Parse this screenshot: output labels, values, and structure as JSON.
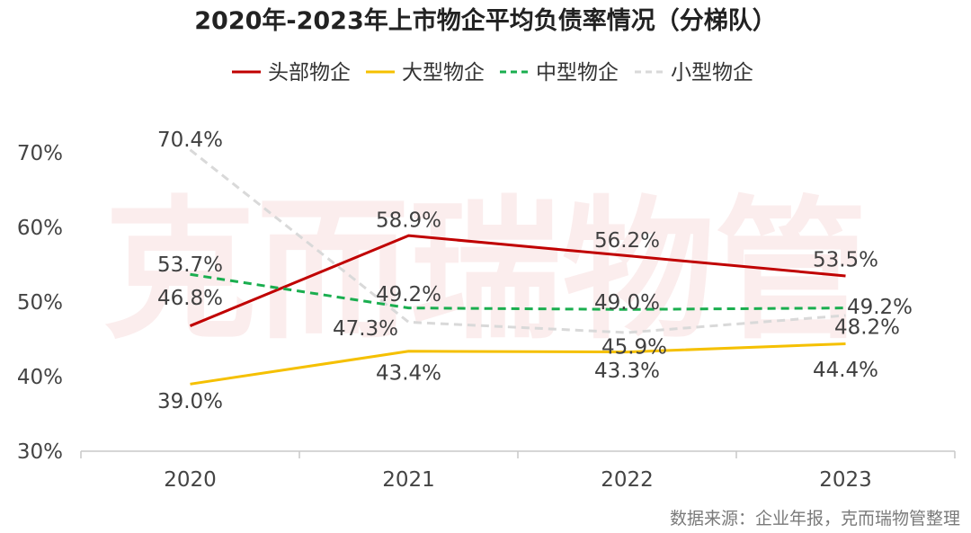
{
  "chart_data": {
    "type": "line",
    "title": "2020年-2023年上市物企平均负债率情况（分梯队）",
    "categories": [
      "2020",
      "2021",
      "2022",
      "2023"
    ],
    "ylim": [
      30,
      70
    ],
    "yticks": [
      "30%",
      "40%",
      "50%",
      "60%",
      "70%"
    ],
    "grid": false,
    "legend_position": "top",
    "series": [
      {
        "name": "头部物企",
        "values": [
          46.8,
          58.9,
          56.2,
          53.5
        ],
        "labels": [
          "46.8%",
          "58.9%",
          "56.2%",
          "53.5%"
        ],
        "color": "#c00000",
        "style": "solid"
      },
      {
        "name": "大型物企",
        "values": [
          39.0,
          43.4,
          43.3,
          44.4
        ],
        "labels": [
          "39.0%",
          "43.4%",
          "43.3%",
          "44.4%"
        ],
        "color": "#f5c000",
        "style": "solid"
      },
      {
        "name": "中型物企",
        "values": [
          53.7,
          49.2,
          49.0,
          49.2
        ],
        "labels": [
          "53.7%",
          "49.2%",
          "49.0%",
          "49.2%"
        ],
        "color": "#1aae4f",
        "style": "dashed"
      },
      {
        "name": "小型物企",
        "values": [
          70.4,
          47.3,
          45.9,
          48.2
        ],
        "labels": [
          "70.4%",
          "47.3%",
          "45.9%",
          "48.2%"
        ],
        "color": "#d9d9d9",
        "style": "dashed"
      }
    ],
    "source": "数据来源：企业年报，克而瑞物管整理",
    "watermark": "克而瑞物管"
  }
}
